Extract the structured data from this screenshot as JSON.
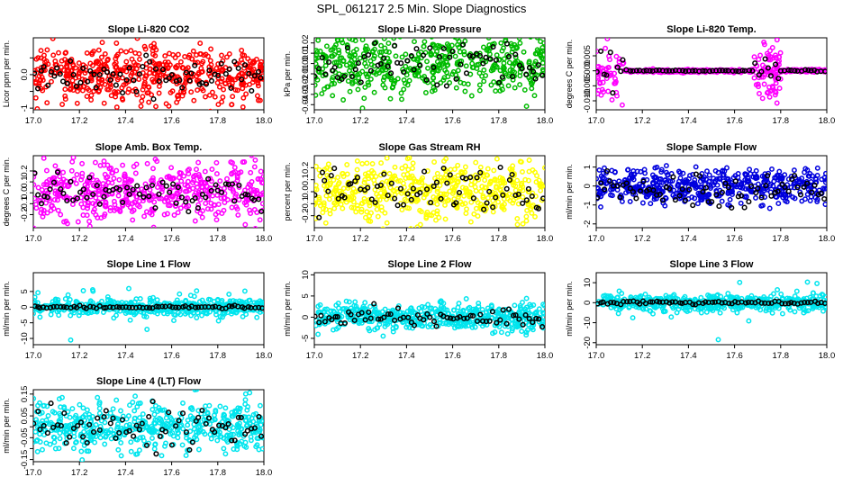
{
  "figure": {
    "title": "SPL_061217  2.5 Min. Slope Diagnostics",
    "colors": {
      "axis": "#000000",
      "overlay_points": "#000000"
    }
  },
  "chart_data": [
    {
      "type": "scatter",
      "title": "Slope Li-820 CO2",
      "ylabel": "Licor ppm per min.",
      "xlabel": "",
      "color": "#ff0000",
      "xlim": [
        17.0,
        18.0
      ],
      "ylim": [
        -1.05,
        1.1
      ],
      "xticks": [
        17.0,
        17.2,
        17.4,
        17.6,
        17.8,
        18.0
      ],
      "xtick_labels": [
        "17.0",
        "17.2",
        "17.4",
        "17.6",
        "17.8",
        "18.0"
      ],
      "yticks": [
        -1,
        -0.5,
        0,
        0.5
      ],
      "ytick_labels": [
        "-1",
        "",
        "0.0",
        ""
      ],
      "series": [
        {
          "name": "all",
          "color": "#ff0000",
          "center": 0.0,
          "spread": 0.42
        },
        {
          "name": "highlight",
          "color": "#000000",
          "center": 0.0,
          "spread": 0.25
        }
      ]
    },
    {
      "type": "scatter",
      "title": "Slope Li-820 Pressure",
      "ylabel": "kPa per min.",
      "xlabel": "",
      "color": "#00bb00",
      "xlim": [
        17.0,
        18.0
      ],
      "ylim": [
        -0.045,
        0.025
      ],
      "xticks": [
        17.0,
        17.2,
        17.4,
        17.6,
        17.8,
        18.0
      ],
      "xtick_labels": [
        "17.0",
        "17.2",
        "17.4",
        "17.6",
        "17.8",
        "18.0"
      ],
      "yticks": [
        -0.04,
        -0.03,
        -0.02,
        -0.01,
        0,
        0.01,
        0.02
      ],
      "ytick_labels": [
        "-0.04",
        "-0.03",
        "-0.02",
        "-0.01",
        "0.00",
        "0.01",
        "0.02"
      ],
      "series": [
        {
          "name": "all",
          "color": "#00bb00",
          "center": 0.0,
          "spread": 0.016
        },
        {
          "name": "highlight",
          "color": "#000000",
          "center": -0.002,
          "spread": 0.012
        }
      ]
    },
    {
      "type": "scatter",
      "title": "Slope Li-820 Temp.",
      "ylabel": "degrees C per min.",
      "xlabel": "",
      "color": "#ff00ff",
      "xlim": [
        17.0,
        18.0
      ],
      "ylim": [
        -0.013,
        0.011
      ],
      "xticks": [
        17.0,
        17.2,
        17.4,
        17.6,
        17.8,
        18.0
      ],
      "xtick_labels": [
        "17.0",
        "17.2",
        "17.4",
        "17.6",
        "17.8",
        "18.0"
      ],
      "yticks": [
        -0.01,
        -0.005,
        0,
        0.005
      ],
      "ytick_labels": [
        "-0.010",
        "-0.005",
        "0.000",
        "0.005"
      ],
      "series": [
        {
          "name": "all",
          "color": "#ff00ff",
          "center": 0.0,
          "spread": 0.005
        },
        {
          "name": "highlight",
          "color": "#000000",
          "center": 0.0,
          "spread": 0.003
        }
      ]
    },
    {
      "type": "scatter",
      "title": "Slope Amb. Box Temp.",
      "ylabel": "degrees C per min.",
      "xlabel": "",
      "color": "#ff00ff",
      "xlim": [
        17.0,
        18.0
      ],
      "ylim": [
        -0.32,
        0.34
      ],
      "xticks": [
        17.0,
        17.2,
        17.4,
        17.6,
        17.8,
        18.0
      ],
      "xtick_labels": [
        "17.0",
        "17.2",
        "17.4",
        "17.6",
        "17.8",
        "18.0"
      ],
      "yticks": [
        -0.2,
        -0.1,
        0,
        0.1,
        0.2
      ],
      "ytick_labels": [
        "-0.2",
        "-0.1",
        "0.0",
        "0.1",
        "0.2"
      ],
      "series": [
        {
          "name": "all",
          "color": "#ff00ff",
          "center": 0.0,
          "spread": 0.13
        },
        {
          "name": "highlight",
          "color": "#000000",
          "center": 0.0,
          "spread": 0.08
        }
      ]
    },
    {
      "type": "scatter",
      "title": "Slope Gas Stream RH",
      "ylabel": "percent per min.",
      "xlabel": "",
      "color": "#ffff00",
      "xlim": [
        17.0,
        18.0
      ],
      "ylim": [
        -0.3,
        0.3
      ],
      "xticks": [
        17.0,
        17.2,
        17.4,
        17.6,
        17.8,
        18.0
      ],
      "xtick_labels": [
        "17.0",
        "17.2",
        "17.4",
        "17.6",
        "17.8",
        "18.0"
      ],
      "yticks": [
        -0.2,
        -0.1,
        0,
        0.1,
        0.2
      ],
      "ytick_labels": [
        "-0.2",
        "-0.1",
        "0.0",
        "0.1",
        "0.2"
      ],
      "series": [
        {
          "name": "all",
          "color": "#ffff00",
          "center": 0.0,
          "spread": 0.12
        },
        {
          "name": "highlight",
          "color": "#000000",
          "center": 0.0,
          "spread": 0.09
        }
      ]
    },
    {
      "type": "scatter",
      "title": "Slope Sample Flow",
      "ylabel": "ml/min per min.",
      "xlabel": "",
      "color": "#0000dd",
      "xlim": [
        17.0,
        18.0
      ],
      "ylim": [
        -2.2,
        1.6
      ],
      "xticks": [
        17.0,
        17.2,
        17.4,
        17.6,
        17.8,
        18.0
      ],
      "xtick_labels": [
        "17.0",
        "17.2",
        "17.4",
        "17.6",
        "17.8",
        "18.0"
      ],
      "yticks": [
        -2,
        -1,
        0,
        1
      ],
      "ytick_labels": [
        "-2",
        "-1",
        "0",
        "1"
      ],
      "series": [
        {
          "name": "all",
          "color": "#0000dd",
          "center": 0.0,
          "spread": 0.45
        },
        {
          "name": "highlight",
          "color": "#000000",
          "center": -0.2,
          "spread": 0.45
        }
      ]
    },
    {
      "type": "scatter",
      "title": "Slope Line 1 Flow",
      "ylabel": "ml/min per min.",
      "xlabel": "",
      "color": "#00e5ee",
      "xlim": [
        17.0,
        18.0
      ],
      "ylim": [
        -12,
        11
      ],
      "xticks": [
        17.0,
        17.2,
        17.4,
        17.6,
        17.8,
        18.0
      ],
      "xtick_labels": [
        "17.0",
        "17.2",
        "17.4",
        "17.6",
        "17.8",
        "18.0"
      ],
      "yticks": [
        -10,
        -5,
        0,
        5
      ],
      "ytick_labels": [
        "-10",
        "-5",
        "0",
        "5"
      ],
      "series": [
        {
          "name": "all",
          "color": "#00e5ee",
          "center": 0.0,
          "spread": 1.3
        },
        {
          "name": "highlight",
          "color": "#000000",
          "center": 0.0,
          "spread": 0.2
        }
      ]
    },
    {
      "type": "scatter",
      "title": "Slope Line 2 Flow",
      "ylabel": "ml/min per min.",
      "xlabel": "",
      "color": "#00e5ee",
      "xlim": [
        17.0,
        18.0
      ],
      "ylim": [
        -6.5,
        10.5
      ],
      "xticks": [
        17.0,
        17.2,
        17.4,
        17.6,
        17.8,
        18.0
      ],
      "xtick_labels": [
        "17.0",
        "17.2",
        "17.4",
        "17.6",
        "17.8",
        "18.0"
      ],
      "yticks": [
        -5,
        0,
        5,
        10
      ],
      "ytick_labels": [
        "-5",
        "0",
        "5",
        "10"
      ],
      "series": [
        {
          "name": "all",
          "color": "#00e5ee",
          "center": 0.0,
          "spread": 1.6
        },
        {
          "name": "highlight",
          "color": "#000000",
          "center": 0.0,
          "spread": 1.0
        }
      ]
    },
    {
      "type": "scatter",
      "title": "Slope Line 3 Flow",
      "ylabel": "ml/min per min.",
      "xlabel": "",
      "color": "#00e5ee",
      "xlim": [
        17.0,
        18.0
      ],
      "ylim": [
        -21,
        15
      ],
      "xticks": [
        17.0,
        17.2,
        17.4,
        17.6,
        17.8,
        18.0
      ],
      "xtick_labels": [
        "17.0",
        "17.2",
        "17.4",
        "17.6",
        "17.8",
        "18.0"
      ],
      "yticks": [
        -20,
        -10,
        0,
        10
      ],
      "ytick_labels": [
        "-20",
        "-10",
        "0",
        "10"
      ],
      "series": [
        {
          "name": "all",
          "color": "#00e5ee",
          "center": 0.0,
          "spread": 2.0
        },
        {
          "name": "highlight",
          "color": "#000000",
          "center": 0.0,
          "spread": 0.5
        }
      ]
    },
    {
      "type": "scatter",
      "title": "Slope Line 4 (LT) Flow",
      "ylabel": "ml/min per min.",
      "xlabel": "",
      "color": "#00e5ee",
      "xlim": [
        17.0,
        18.0
      ],
      "ylim": [
        -0.16,
        0.17
      ],
      "xticks": [
        17.0,
        17.2,
        17.4,
        17.6,
        17.8,
        18.0
      ],
      "xtick_labels": [
        "17.0",
        "17.2",
        "17.4",
        "17.6",
        "17.8",
        "18.0"
      ],
      "yticks": [
        -0.15,
        -0.1,
        -0.05,
        0,
        0.05,
        0.1,
        0.15
      ],
      "ytick_labels": [
        "-0.15",
        "",
        "-0.05",
        "",
        "0.05",
        "",
        "0.15"
      ],
      "series": [
        {
          "name": "all",
          "color": "#00e5ee",
          "center": 0.0,
          "spread": 0.06
        },
        {
          "name": "highlight",
          "color": "#000000",
          "center": 0.0,
          "spread": 0.05
        }
      ]
    }
  ]
}
